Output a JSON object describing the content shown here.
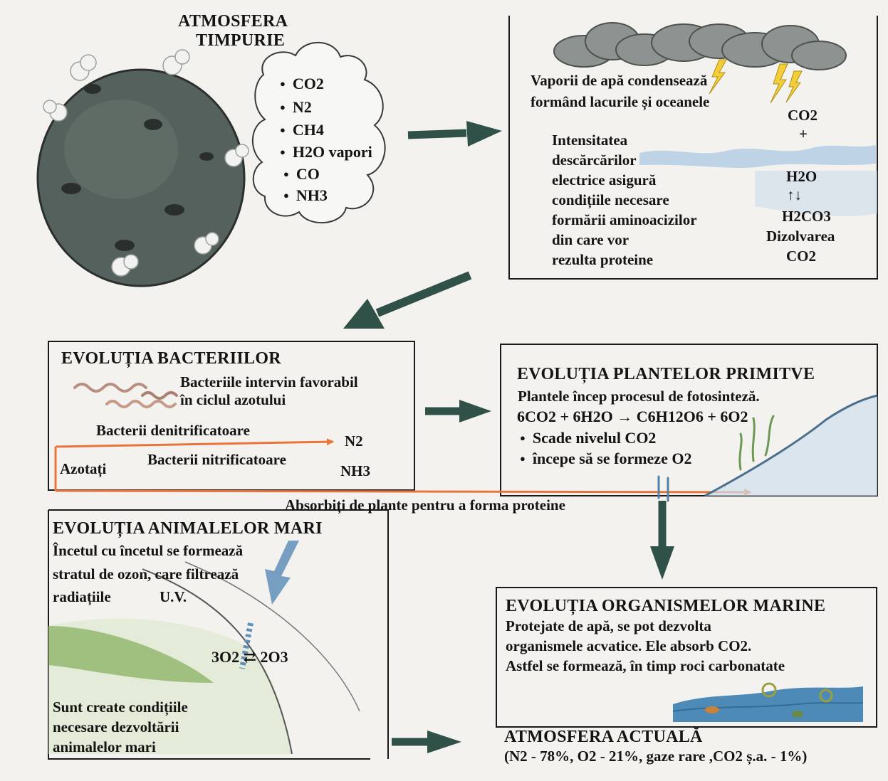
{
  "early_atmosphere": {
    "title_line1": "ATMOSFERA",
    "title_line2": "TIMPURIE",
    "gases": [
      "CO2",
      "N2",
      "CH4",
      "H2O vapori",
      "CO",
      "NH3"
    ]
  },
  "clouds_panel": {
    "line1": "Vaporii de apă condensează",
    "line2": "formând lacurile și oceanele",
    "text_lines": [
      "Intensitatea",
      "descărcărilor",
      "electrice asigură",
      "condițiile necesare",
      "formării aminoacizilor",
      "din care vor",
      "rezulta proteine"
    ],
    "reaction": {
      "co2": "CO2",
      "plus": "+",
      "h2o": "H2O",
      "arrows": "↑↓",
      "h2co3": "H2CO3",
      "dissolution": "Dizolvarea",
      "co2_bottom": "CO2"
    }
  },
  "bacteria_panel": {
    "title": "EVOLUȚIA BACTERIILOR",
    "line1": "Bacteriile intervin favorabil",
    "line2": "în ciclul azotului",
    "denitrifying": "Bacterii denitrificatoare",
    "n2": "N2",
    "nitrites": "Azotați",
    "nitrifying": "Bacterii nitrificatoare",
    "nh3": "NH3",
    "absorbed": "Absorbiți de plante pentru a forma proteine"
  },
  "plants_panel": {
    "title": "EVOLUȚIA PLANTELOR PRIMITVE",
    "line1": "Plantele încep procesul de fotosinteză.",
    "equation": "6CO2 + 6H2O → C6H12O6 + 6O2",
    "bullets": [
      "Scade nivelul CO2",
      "începe să se formeze O2"
    ]
  },
  "animals_panel": {
    "title": "EVOLUȚIA ANIMALELOR MARI",
    "lines": [
      "Încetul cu încetul se formează",
      "stratul de ozon, care filtrează",
      "radiațiile"
    ],
    "uv": "U.V.",
    "ozone_reaction": "3O2 ⇄ 2O3",
    "bottom_lines": [
      "Sunt create condițiile",
      "necesare dezvoltării",
      "animalelor mari"
    ]
  },
  "marine_panel": {
    "title": "EVOLUȚIA ORGANISMELOR MARINE",
    "lines": [
      "Protejate de apă, se pot dezvolta",
      "organismele acvatice. Ele absorb CO2.",
      "Astfel se formează, în timp roci carbonatate"
    ]
  },
  "current_atmosphere": {
    "title": "ATMOSFERA ACTUALĂ",
    "composition": "(N2 - 78%, O2 - 21%, gaze rare ,CO2 ș.a. - 1%)"
  },
  "colors": {
    "arrow_green": "#2f5148",
    "nitrogen_arrow": "#e8743b",
    "planet": "#55615c",
    "cloud_gray": "#8c9390",
    "water_blue": "#5f8fb8",
    "grass_green": "#8fb56a"
  }
}
